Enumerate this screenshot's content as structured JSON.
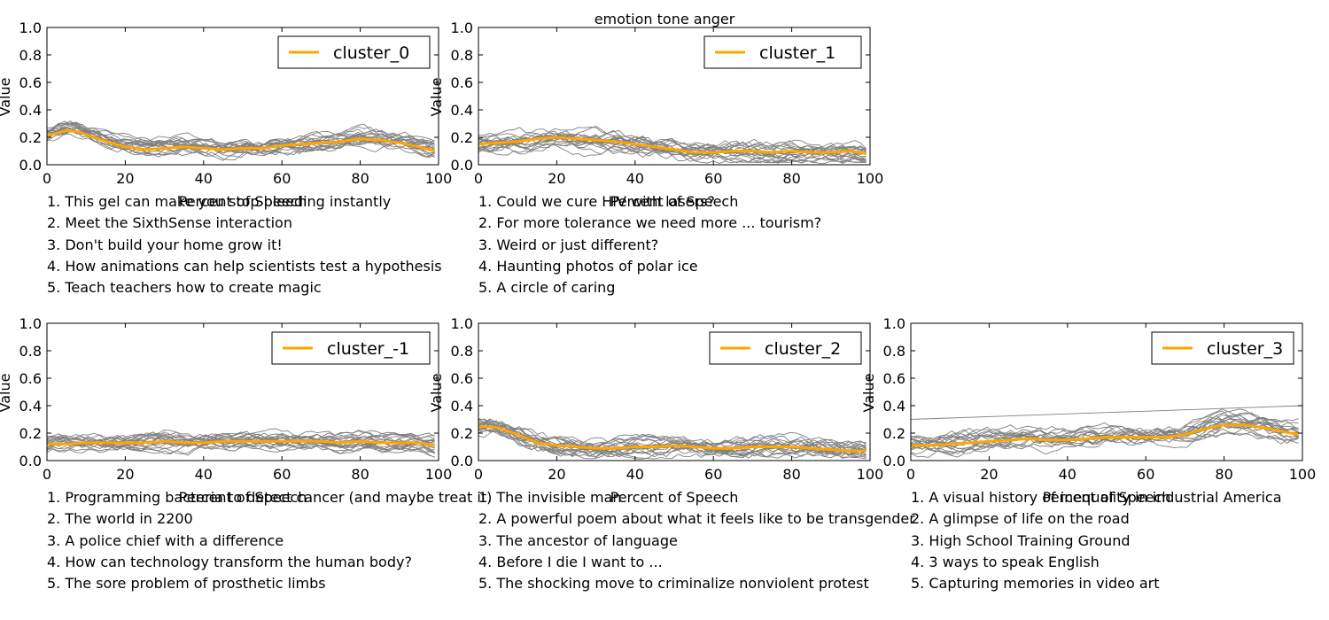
{
  "figure": {
    "suptitle": "emotion tone anger"
  },
  "colors": {
    "mean": "#ffa500",
    "members": "#808080"
  },
  "chart_data": [
    {
      "type": "line",
      "xlabel": "Percent of Speech",
      "ylabel": "Value",
      "xlim": [
        0,
        100
      ],
      "ylim": [
        0,
        1
      ],
      "xticks": [
        "0",
        "20",
        "40",
        "60",
        "80",
        "100"
      ],
      "yticks": [
        "0.0",
        "0.2",
        "0.4",
        "0.6",
        "0.8",
        "1.0"
      ],
      "legend_position": "top-right",
      "mean_series": {
        "name": "cluster_0",
        "x": [
          0,
          5,
          8,
          12,
          16,
          20,
          25,
          30,
          35,
          40,
          45,
          50,
          55,
          60,
          65,
          70,
          75,
          80,
          85,
          90,
          95,
          99
        ],
        "y": [
          0.21,
          0.25,
          0.24,
          0.2,
          0.16,
          0.13,
          0.11,
          0.12,
          0.13,
          0.12,
          0.11,
          0.12,
          0.12,
          0.14,
          0.15,
          0.16,
          0.17,
          0.19,
          0.18,
          0.16,
          0.13,
          0.1
        ]
      },
      "member_count": 20,
      "member_spread": 0.06,
      "talks": [
        "1. This gel can make you stop bleeding instantly",
        "2. Meet the SixthSense interaction",
        "3. Don't build your home  grow it!",
        "4. How animations can help scientists test a hypothesis",
        "5. Teach teachers how to create magic"
      ]
    },
    {
      "type": "line",
      "xlabel": "Percent of Speech",
      "ylabel": "Value",
      "xlim": [
        0,
        100
      ],
      "ylim": [
        0,
        1
      ],
      "xticks": [
        "0",
        "20",
        "40",
        "60",
        "80",
        "100"
      ],
      "yticks": [
        "0.0",
        "0.2",
        "0.4",
        "0.6",
        "0.8",
        "1.0"
      ],
      "legend_position": "top-right",
      "mean_series": {
        "name": "cluster_1",
        "x": [
          0,
          5,
          10,
          15,
          20,
          25,
          30,
          35,
          40,
          45,
          50,
          55,
          60,
          65,
          70,
          75,
          80,
          85,
          90,
          95,
          99
        ],
        "y": [
          0.15,
          0.16,
          0.17,
          0.19,
          0.2,
          0.19,
          0.18,
          0.17,
          0.15,
          0.13,
          0.11,
          0.09,
          0.09,
          0.1,
          0.1,
          0.09,
          0.1,
          0.09,
          0.09,
          0.1,
          0.08
        ]
      },
      "member_count": 20,
      "member_spread": 0.07,
      "talks": [
        "1. Could we cure HIV with lasers?",
        "2. For more tolerance  we need more ... tourism?",
        "3. Weird  or just different?",
        "4. Haunting photos of polar ice",
        "5. A circle of caring"
      ]
    },
    {
      "type": "line",
      "xlabel": "Percent of Speech",
      "ylabel": "Value",
      "xlim": [
        0,
        100
      ],
      "ylim": [
        0,
        1
      ],
      "xticks": [
        "0",
        "20",
        "40",
        "60",
        "80",
        "100"
      ],
      "yticks": [
        "0.0",
        "0.2",
        "0.4",
        "0.6",
        "0.8",
        "1.0"
      ],
      "legend_position": "top-right",
      "mean_series": {
        "name": "cluster_-1",
        "x": [
          0,
          5,
          10,
          15,
          20,
          25,
          30,
          35,
          40,
          45,
          50,
          55,
          60,
          65,
          70,
          75,
          80,
          85,
          90,
          95,
          99
        ],
        "y": [
          0.12,
          0.12,
          0.13,
          0.13,
          0.13,
          0.13,
          0.14,
          0.13,
          0.13,
          0.14,
          0.14,
          0.14,
          0.14,
          0.14,
          0.14,
          0.13,
          0.14,
          0.13,
          0.13,
          0.13,
          0.11
        ]
      },
      "member_count": 20,
      "member_spread": 0.06,
      "talks": [
        "1. Programming bacteria to detect cancer (and maybe treat it)",
        "2. The world in 2200",
        "3. A police chief with a difference",
        "4. How can technology transform the human body?",
        "5. The sore problem of prosthetic limbs"
      ]
    },
    {
      "type": "line",
      "xlabel": "Percent of Speech",
      "ylabel": "Value",
      "xlim": [
        0,
        100
      ],
      "ylim": [
        0,
        1
      ],
      "xticks": [
        "0",
        "20",
        "40",
        "60",
        "80",
        "100"
      ],
      "yticks": [
        "0.0",
        "0.2",
        "0.4",
        "0.6",
        "0.8",
        "1.0"
      ],
      "legend_position": "top-right",
      "mean_series": {
        "name": "cluster_2",
        "x": [
          0,
          5,
          10,
          15,
          20,
          25,
          30,
          35,
          40,
          45,
          50,
          55,
          60,
          65,
          70,
          75,
          80,
          85,
          90,
          95,
          99
        ],
        "y": [
          0.25,
          0.24,
          0.19,
          0.13,
          0.11,
          0.1,
          0.09,
          0.09,
          0.1,
          0.1,
          0.11,
          0.1,
          0.09,
          0.09,
          0.1,
          0.1,
          0.1,
          0.09,
          0.08,
          0.07,
          0.07
        ]
      },
      "member_count": 20,
      "member_spread": 0.07,
      "talks": [
        "1. The invisible man",
        "2. A powerful poem about what it feels like to be transgender",
        "3. The ancestor of language",
        "4. Before I die I want to ...",
        "5. The shocking move to criminalize nonviolent protest"
      ]
    },
    {
      "type": "line",
      "xlabel": "Percent of Speech",
      "ylabel": "Value",
      "xlim": [
        0,
        100
      ],
      "ylim": [
        0,
        1
      ],
      "xticks": [
        "0",
        "20",
        "40",
        "60",
        "80",
        "100"
      ],
      "yticks": [
        "0.0",
        "0.2",
        "0.4",
        "0.6",
        "0.8",
        "1.0"
      ],
      "legend_position": "top-right",
      "mean_series": {
        "name": "cluster_3",
        "x": [
          0,
          5,
          10,
          15,
          20,
          25,
          30,
          35,
          40,
          45,
          50,
          55,
          60,
          65,
          70,
          75,
          80,
          85,
          90,
          95,
          99
        ],
        "y": [
          0.11,
          0.11,
          0.12,
          0.13,
          0.14,
          0.15,
          0.16,
          0.15,
          0.15,
          0.16,
          0.17,
          0.17,
          0.17,
          0.17,
          0.19,
          0.23,
          0.26,
          0.26,
          0.24,
          0.21,
          0.19
        ]
      },
      "outlier_series": {
        "x": [
          0,
          100
        ],
        "y": [
          0.3,
          0.4
        ]
      },
      "member_count": 19,
      "member_spread": 0.07,
      "talks": [
        "1. A visual history of inequality in industrial America",
        "2. A glimpse of life on the road",
        "3. High School Training Ground",
        "4. 3 ways to speak English",
        "5. Capturing memories in video art"
      ]
    }
  ]
}
